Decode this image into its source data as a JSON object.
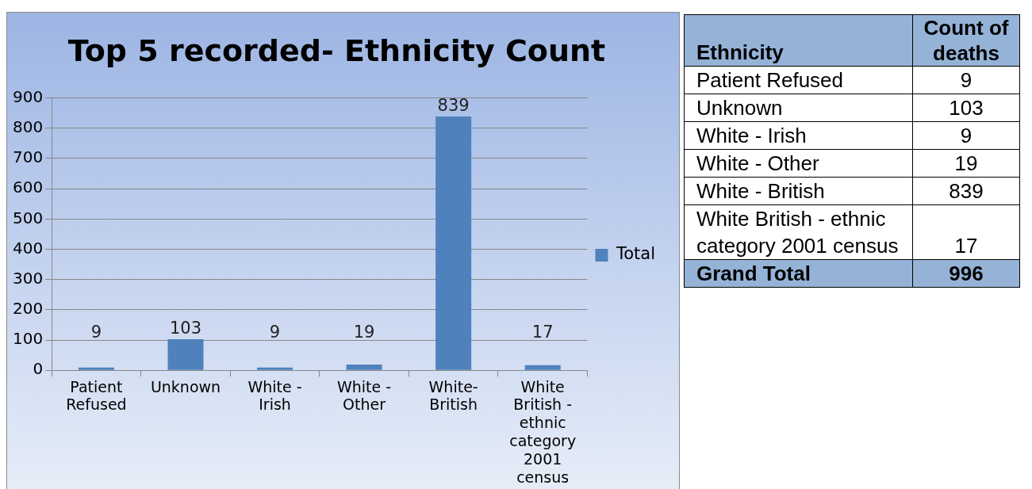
{
  "chart_data": [
    {
      "type": "bar",
      "title": "Top 5 recorded- Ethnicity Count",
      "categories": [
        "Patient Refused",
        "Unknown",
        "White - Irish",
        "White - Other",
        "White-British",
        "White British - ethnic category 2001 census"
      ],
      "series": [
        {
          "name": "Total",
          "color": "#4f81bd",
          "values": [
            9,
            103,
            9,
            19,
            839,
            17
          ]
        }
      ],
      "ylim": [
        0,
        900
      ],
      "yticks": [
        0,
        100,
        200,
        300,
        400,
        500,
        600,
        700,
        800,
        900
      ],
      "grid": "y",
      "legend": "right",
      "data_labels": true
    },
    {
      "type": "other",
      "xlabel": "Ethnicity",
      "ylabel": "Count of deaths",
      "categories": [
        "Patient Refused",
        "Unknown",
        "White - Irish",
        "White - Other",
        "White - British",
        "White British - ethnic category 2001 census"
      ],
      "values": [
        9,
        103,
        9,
        19,
        839,
        17
      ],
      "data_labels": true,
      "annotations": [
        "Grand Total",
        "996"
      ]
    }
  ]
}
